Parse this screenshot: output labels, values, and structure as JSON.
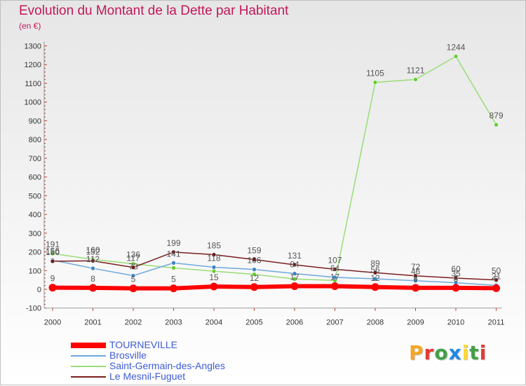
{
  "title": "Evolution du Montant de la Dette par Habitant",
  "unit": "(en €)",
  "logo": {
    "text": "Proxiti",
    "letter_colors": [
      "#f5a623",
      "#e53935",
      "#43a047",
      "#1e88e5",
      "#fdd835",
      "#43a047",
      "#e53935"
    ]
  },
  "chart_data": {
    "type": "line",
    "x": [
      "2000",
      "2001",
      "2002",
      "2003",
      "2004",
      "2005",
      "2006",
      "2007",
      "2008",
      "2009",
      "2010",
      "2011"
    ],
    "yticks": [
      "-100",
      "0",
      "100",
      "200",
      "300",
      "400",
      "500",
      "600",
      "700",
      "800",
      "900",
      "1000",
      "1100",
      "1200",
      "1300"
    ],
    "ylim": [
      -100,
      1300
    ],
    "grid": false,
    "legend": "bottom-left",
    "series": [
      {
        "name": "Saint-Germain-des-Angles",
        "color": "#99dd77",
        "marker": "#66cc33",
        "width": 1.5,
        "values": [
          191,
          160,
          136,
          114,
          97,
          80,
          55,
          47,
          1105,
          1121,
          1244,
          879
        ],
        "labels": [
          "191",
          "160",
          "136",
          "",
          "",
          "",
          "",
          "",
          "1105",
          "1121",
          "1244",
          "879"
        ]
      },
      {
        "name": "Brosville",
        "color": "#6fa8dc",
        "marker": "#3d85c6",
        "width": 1.5,
        "values": [
          156,
          112,
          73,
          141,
          118,
          106,
          84,
          64,
          56,
          46,
          35,
          21
        ],
        "labels": [
          "156",
          "112",
          "73",
          "141",
          "118",
          "106",
          "84",
          "64",
          "56",
          "46",
          "35",
          "21"
        ]
      },
      {
        "name": "Le Mesnil-Fuguet",
        "color": "#7a1f1f",
        "marker": "#6a1a1a",
        "width": 1.5,
        "values": [
          150,
          152,
          117,
          199,
          185,
          159,
          131,
          107,
          89,
          72,
          60,
          50
        ],
        "labels": [
          "150",
          "152",
          "117",
          "199",
          "185",
          "159",
          "131",
          "107",
          "89",
          "72",
          "60",
          "50"
        ]
      },
      {
        "name": "TOURNEVILLE",
        "color": "#ff0000",
        "marker": "#ff0000",
        "width": 6,
        "values": [
          9,
          8,
          5,
          5,
          15,
          12,
          17,
          17,
          12,
          8,
          8,
          6
        ],
        "labels": [
          "9",
          "8",
          "5",
          "5",
          "15",
          "12",
          "17",
          "17",
          "12",
          "8",
          "8",
          "6"
        ]
      }
    ]
  },
  "legend_order": [
    3,
    1,
    0,
    2
  ]
}
